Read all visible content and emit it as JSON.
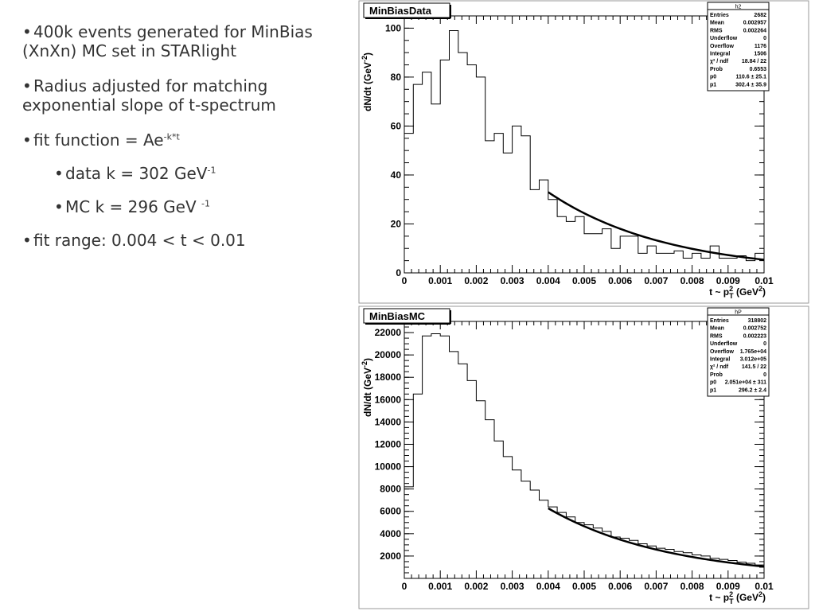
{
  "bullets": {
    "b1": {
      "text": "400k events generated for MinBias (XnXn) MC set in STARlight"
    },
    "b2": {
      "text": "Radius adjusted for matching exponential slope of t-spectrum"
    },
    "b3": {
      "text": "fit function = Ae",
      "sup": "-k*t"
    },
    "b4": {
      "text": "data k = 302 GeV",
      "sup": "-1"
    },
    "b5": {
      "text": "MC k = 296 GeV ",
      "sup": "-1"
    },
    "b6": {
      "text": "fit range: 0.004 < t < 0.01"
    }
  },
  "chart_data": [
    {
      "type": "bar",
      "title": "MinBiasData",
      "ylabel": "dN/dt (GeV",
      "ylabel_sup": "-2",
      "ylabel_close": ")",
      "xlabel": "t ~ p",
      "xlabel_sup": "2",
      "xlabel_sub": "T",
      "xlabel_tail": " (GeV",
      "xlabel_tail_sup": "2",
      "xlabel_close": ")",
      "xlim": [
        0,
        0.01
      ],
      "ylim": [
        0,
        105
      ],
      "xticks": [
        "0",
        "0.001",
        "0.002",
        "0.003",
        "0.004",
        "0.005",
        "0.006",
        "0.007",
        "0.008",
        "0.009",
        "0.01"
      ],
      "yticks": [
        "0",
        "20",
        "40",
        "60",
        "80",
        "100"
      ],
      "bin_width": 0.00025,
      "values": [
        57,
        77,
        82,
        69,
        87,
        99,
        90,
        85,
        80,
        54,
        57,
        49,
        60,
        56,
        34,
        38,
        30,
        23,
        21,
        23,
        16,
        16,
        18,
        10,
        15,
        15,
        8,
        11,
        8,
        8,
        9,
        6,
        8,
        6,
        11,
        6,
        6,
        7,
        5,
        8
      ],
      "fit": {
        "x_from": 0.004,
        "x_to": 0.01,
        "p0": 110.6,
        "p1": 302.4
      },
      "stats": {
        "name": "h2",
        "rows": [
          [
            "Entries",
            "2682"
          ],
          [
            "Mean",
            "0.002957"
          ],
          [
            "RMS",
            "0.002264"
          ],
          [
            "Underflow",
            "0"
          ],
          [
            "Overflow",
            "1176"
          ],
          [
            "Integral",
            "1506"
          ],
          [
            "χ² / ndf",
            "18.84 / 22"
          ],
          [
            "Prob",
            "0.6553"
          ],
          [
            "p0",
            "110.6 ± 25.1"
          ],
          [
            "p1",
            "302.4 ± 35.9"
          ]
        ]
      }
    },
    {
      "type": "bar",
      "title": "MinBiasMC",
      "ylabel": "dN/dt (GeV",
      "ylabel_sup": "-2",
      "ylabel_close": ")",
      "xlabel": "t ~ p",
      "xlabel_sup": "2",
      "xlabel_sub": "T",
      "xlabel_tail": " (GeV",
      "xlabel_tail_sup": "2",
      "xlabel_close": ")",
      "xlim": [
        0,
        0.01
      ],
      "ylim": [
        0,
        23000
      ],
      "xticks": [
        "0",
        "0.001",
        "0.002",
        "0.003",
        "0.004",
        "0.005",
        "0.006",
        "0.007",
        "0.008",
        "0.009",
        "0.01"
      ],
      "yticks": [
        "2000",
        "4000",
        "6000",
        "8000",
        "10000",
        "12000",
        "14000",
        "16000",
        "18000",
        "20000",
        "22000"
      ],
      "bin_width": 0.00025,
      "values": [
        8200,
        16500,
        21700,
        21900,
        21700,
        20300,
        19200,
        17700,
        15900,
        14200,
        12300,
        10900,
        9700,
        8700,
        7900,
        7000,
        6400,
        5900,
        5500,
        5000,
        4800,
        4500,
        4200,
        3700,
        3600,
        3400,
        3100,
        2900,
        2700,
        2600,
        2400,
        2300,
        2100,
        2000,
        1800,
        1700,
        1600,
        1450,
        1350,
        1200
      ],
      "fit": {
        "x_from": 0.004,
        "x_to": 0.01,
        "p0": 20510,
        "p1": 296.2
      },
      "stats": {
        "name": "hP",
        "rows": [
          [
            "Entries",
            "318802"
          ],
          [
            "Mean",
            "0.002752"
          ],
          [
            "RMS",
            "0.002223"
          ],
          [
            "Underflow",
            "0"
          ],
          [
            "Overflow",
            "1.765e+04"
          ],
          [
            "Integral",
            "3.012e+05"
          ],
          [
            "χ² / ndf",
            "141.5 / 22"
          ],
          [
            "Prob",
            "0"
          ],
          [
            "p0",
            "2.051e+04 ± 311"
          ],
          [
            "p1",
            "296.2 ± 2.4"
          ]
        ]
      }
    }
  ]
}
